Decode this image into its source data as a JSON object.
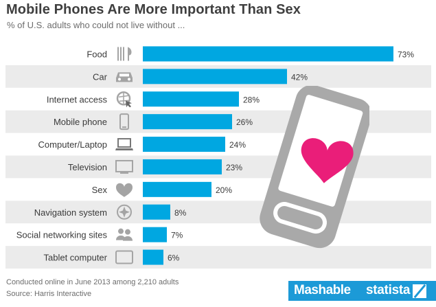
{
  "title": "Mobile Phones Are More Important Than Sex",
  "subtitle": "% of U.S. adults who could not live without ...",
  "footer": {
    "note": "Conducted online in June 2013 among 2,210 adults",
    "source": "Source: Harris Interactive"
  },
  "brands": {
    "primary": "Mashable",
    "secondary": "statista"
  },
  "colors": {
    "bar": "#00a7e1",
    "stripe": "#ebebeb",
    "icon": "#a4a4a4",
    "heart": "#ea1e79",
    "brand_bar": "#1c9ad7"
  },
  "chart_data": {
    "type": "bar",
    "orientation": "horizontal",
    "unit": "%",
    "categories": [
      "Food",
      "Car",
      "Internet access",
      "Mobile phone",
      "Computer/Laptop",
      "Television",
      "Sex",
      "Navigation system",
      "Social networking sites",
      "Tablet computer"
    ],
    "values": [
      73,
      42,
      28,
      26,
      24,
      23,
      20,
      8,
      7,
      6
    ],
    "value_labels": [
      "73%",
      "42%",
      "28%",
      "26%",
      "24%",
      "23%",
      "20%",
      "8%",
      "7%",
      "6%"
    ],
    "icons": [
      "fork-knife-icon",
      "car-icon",
      "globe-cursor-icon",
      "mobile-phone-icon",
      "laptop-icon",
      "television-icon",
      "heart-icon",
      "compass-icon",
      "people-icon",
      "tablet-icon"
    ],
    "xlim": [
      0,
      73
    ],
    "grid": false,
    "legend": "none"
  }
}
